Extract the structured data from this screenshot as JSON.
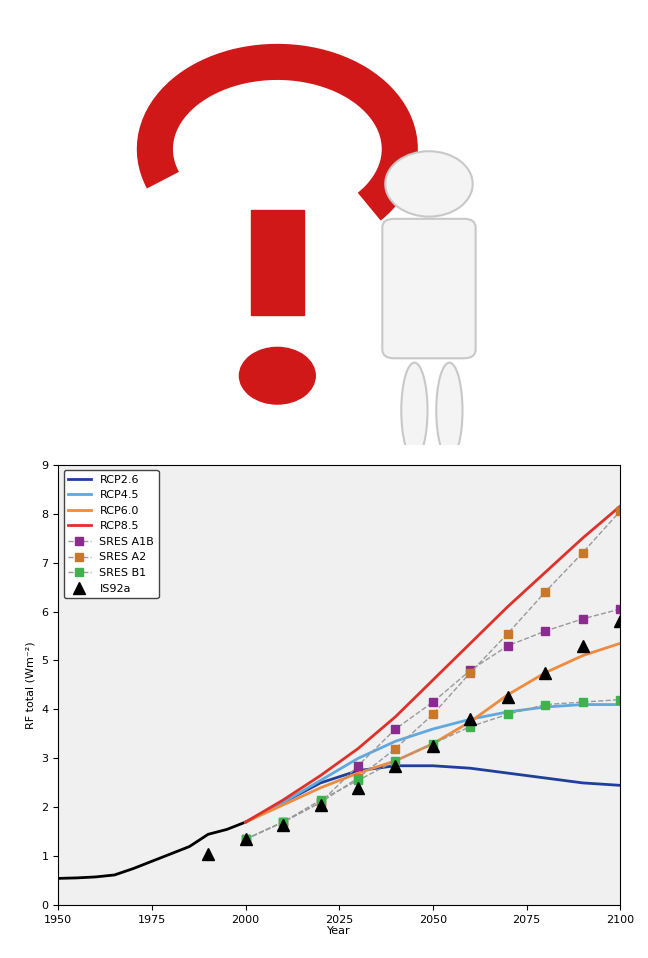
{
  "chart_data": {
    "type": "line",
    "x_label": "Year",
    "y_label": "RF total (Wm⁻²)",
    "xlim": [
      1950,
      2100
    ],
    "xticks": [
      1950,
      1975,
      2000,
      2025,
      2050,
      2075,
      2100
    ],
    "ylim": [
      0,
      9
    ],
    "yticks": [
      0,
      1,
      2,
      3,
      4,
      5,
      6,
      7,
      8,
      9
    ],
    "legend": "upper left",
    "grid": false,
    "series": [
      {
        "color": "#000000",
        "line_style": "solid",
        "marker": "none",
        "x": [
          1950,
          1955,
          1960,
          1965,
          1970,
          1975,
          1980,
          1985,
          1990,
          1995,
          2000
        ],
        "values": [
          0.55,
          0.56,
          0.58,
          0.62,
          0.75,
          0.9,
          1.05,
          1.2,
          1.45,
          1.55,
          1.7
        ]
      },
      {
        "name": "RCP2.6",
        "color": "#1f3f99",
        "line_style": "solid",
        "marker": "none",
        "x": [
          2000,
          2010,
          2020,
          2030,
          2040,
          2050,
          2060,
          2070,
          2080,
          2090,
          2100
        ],
        "values": [
          1.7,
          2.1,
          2.5,
          2.75,
          2.85,
          2.85,
          2.8,
          2.7,
          2.6,
          2.5,
          2.45
        ]
      },
      {
        "name": "RCP4.5",
        "color": "#5fa8e0",
        "line_style": "solid",
        "marker": "none",
        "x": [
          2000,
          2010,
          2020,
          2030,
          2040,
          2050,
          2060,
          2070,
          2080,
          2090,
          2100
        ],
        "values": [
          1.7,
          2.1,
          2.55,
          3.0,
          3.35,
          3.6,
          3.8,
          3.95,
          4.05,
          4.1,
          4.1
        ]
      },
      {
        "name": "RCP6.0",
        "color": "#f08a3c",
        "line_style": "solid",
        "marker": "none",
        "x": [
          2000,
          2010,
          2020,
          2030,
          2040,
          2050,
          2060,
          2070,
          2080,
          2090,
          2100
        ],
        "values": [
          1.7,
          2.05,
          2.4,
          2.7,
          2.95,
          3.3,
          3.75,
          4.3,
          4.75,
          5.1,
          5.35
        ]
      },
      {
        "name": "RCP8.5",
        "color": "#e0302a",
        "line_style": "solid",
        "marker": "none",
        "x": [
          2000,
          2010,
          2020,
          2030,
          2040,
          2050,
          2060,
          2070,
          2080,
          2090,
          2100
        ],
        "values": [
          1.7,
          2.15,
          2.65,
          3.2,
          3.85,
          4.6,
          5.35,
          6.1,
          6.8,
          7.5,
          8.15
        ]
      },
      {
        "name": "SRES A1B",
        "color": "#8b2a8f",
        "line_style": "dashed",
        "marker": "square",
        "x": [
          2000,
          2010,
          2020,
          2030,
          2040,
          2050,
          2060,
          2070,
          2080,
          2090,
          2100
        ],
        "values": [
          1.35,
          1.7,
          2.1,
          2.85,
          3.6,
          4.15,
          4.8,
          5.3,
          5.6,
          5.85,
          6.05
        ]
      },
      {
        "name": "SRES A2",
        "color": "#c8782a",
        "line_style": "dashed",
        "marker": "square",
        "x": [
          2000,
          2010,
          2020,
          2030,
          2040,
          2050,
          2060,
          2070,
          2080,
          2090,
          2100
        ],
        "values": [
          1.35,
          1.7,
          2.1,
          2.6,
          3.2,
          3.9,
          4.75,
          5.55,
          6.4,
          7.2,
          8.05
        ]
      },
      {
        "name": "SRES B1",
        "color": "#3cb44b",
        "line_style": "dashed",
        "marker": "square",
        "x": [
          2000,
          2010,
          2020,
          2030,
          2040,
          2050,
          2060,
          2070,
          2080,
          2090,
          2100
        ],
        "values": [
          1.35,
          1.7,
          2.15,
          2.55,
          2.95,
          3.3,
          3.65,
          3.9,
          4.1,
          4.15,
          4.2
        ]
      },
      {
        "name": "IS92a",
        "color": "#000000",
        "line_style": "none",
        "marker": "triangle",
        "x": [
          1990,
          2000,
          2010,
          2020,
          2030,
          2040,
          2050,
          2060,
          2070,
          2080,
          2090,
          2100
        ],
        "values": [
          1.05,
          1.35,
          1.65,
          2.05,
          2.4,
          2.85,
          3.25,
          3.8,
          4.25,
          4.75,
          5.3,
          5.8
        ]
      }
    ]
  }
}
